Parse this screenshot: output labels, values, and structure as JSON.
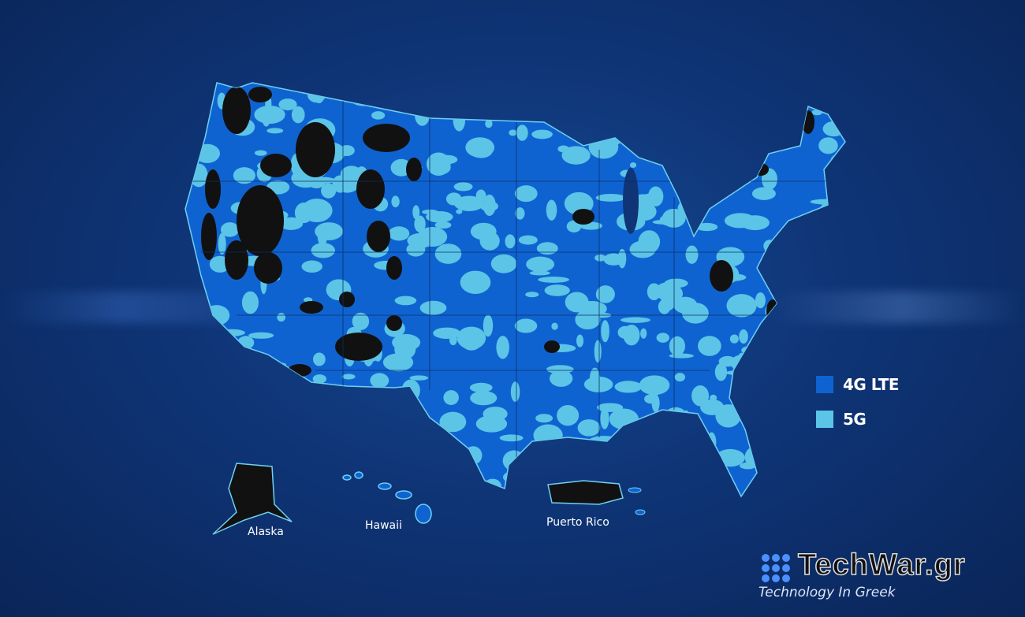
{
  "legend": [
    {
      "label": "4G LTE",
      "color": "#0f63d1"
    },
    {
      "label": "5G",
      "color": "#5cc4e6"
    }
  ],
  "colors": {
    "no_coverage": "#111111",
    "background": "#0f3577"
  },
  "regions": {
    "alaska": "Alaska",
    "hawaii": "Hawaii",
    "puerto_rico": "Puerto Rico"
  },
  "watermark": {
    "title": "TechWar.gr",
    "subtitle": "Technology In Greek"
  }
}
